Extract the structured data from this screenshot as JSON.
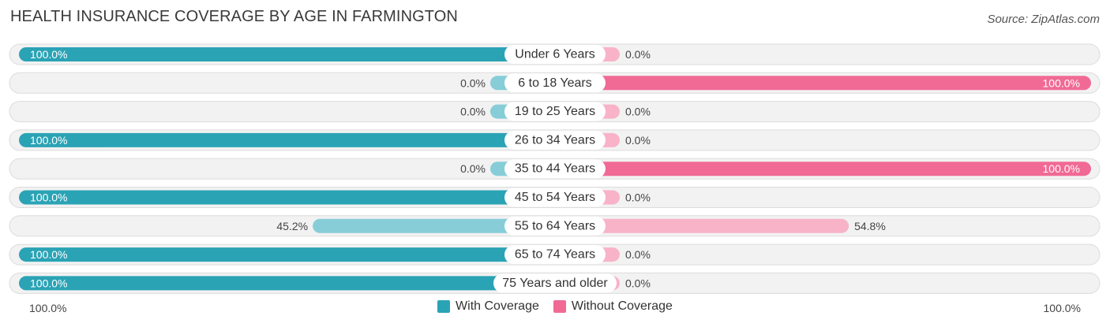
{
  "header": {
    "title": "HEALTH INSURANCE COVERAGE BY AGE IN FARMINGTON",
    "source": "Source: ZipAtlas.com"
  },
  "chart_data": {
    "type": "bar",
    "orientation": "diverging-horizontal",
    "title": "HEALTH INSURANCE COVERAGE BY AGE IN FARMINGTON",
    "categories": [
      "Under 6 Years",
      "6 to 18 Years",
      "19 to 25 Years",
      "26 to 34 Years",
      "35 to 44 Years",
      "45 to 54 Years",
      "55 to 64 Years",
      "65 to 74 Years",
      "75 Years and older"
    ],
    "series": [
      {
        "name": "With Coverage",
        "values": [
          100.0,
          0.0,
          0.0,
          100.0,
          0.0,
          100.0,
          45.2,
          100.0,
          100.0
        ],
        "labels": [
          "100.0%",
          "0.0%",
          "0.0%",
          "100.0%",
          "0.0%",
          "100.0%",
          "45.2%",
          "100.0%",
          "100.0%"
        ]
      },
      {
        "name": "Without Coverage",
        "values": [
          0.0,
          100.0,
          0.0,
          0.0,
          100.0,
          0.0,
          54.8,
          0.0,
          0.0
        ],
        "labels": [
          "0.0%",
          "100.0%",
          "0.0%",
          "0.0%",
          "100.0%",
          "0.0%",
          "54.8%",
          "0.0%",
          "0.0%"
        ]
      }
    ],
    "xlim": [
      0,
      100
    ],
    "axis_left_label": "100.0%",
    "axis_right_label": "100.0%",
    "legend_position": "bottom-center"
  },
  "colors": {
    "with_strong": "#2aa3b5",
    "with_light": "#86cdd8",
    "without_strong": "#f06a95",
    "without_light": "#f8b3c8",
    "track_bg": "#f2f2f2",
    "track_border": "#dcdcdc"
  }
}
